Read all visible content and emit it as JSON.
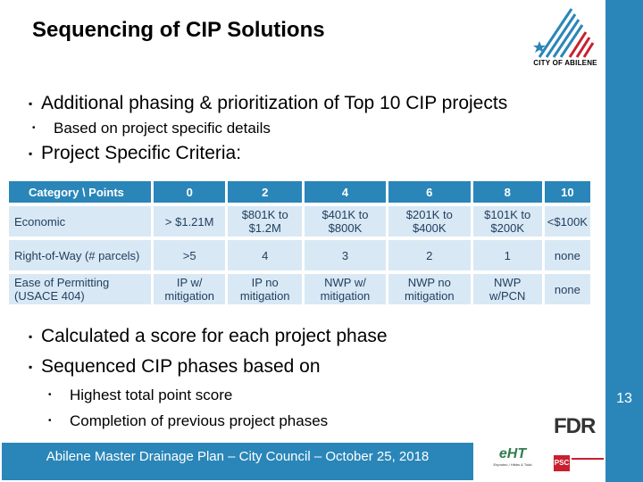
{
  "slide": {
    "title": "Sequencing of CIP Solutions",
    "page_number": "13",
    "logo_text": "CITY OF ABILENE"
  },
  "bullets_top": [
    {
      "text": "Additional phasing & prioritization of Top 10 CIP projects"
    },
    {
      "text": "Based on project specific details"
    },
    {
      "text": "Project Specific Criteria:"
    }
  ],
  "table": {
    "headers": [
      "Category \\ Points",
      "0",
      "2",
      "4",
      "6",
      "8",
      "10"
    ],
    "rows": [
      [
        "Economic",
        "> $1.21M",
        "$801K to $1.2M",
        "$401K to $800K",
        "$201K to $400K",
        "$101K to $200K",
        "<$100K"
      ],
      [
        "Right-of-Way (# parcels)",
        ">5",
        "4",
        "3",
        "2",
        "1",
        "none"
      ],
      [
        "Ease of Permitting (USACE 404)",
        "IP w/ mitigation",
        "IP no mitigation",
        "NWP w/ mitigation",
        "NWP no mitigation",
        "NWP w/PCN",
        "none"
      ]
    ]
  },
  "bullets_bottom": [
    {
      "text": "Calculated a score for each project phase"
    },
    {
      "text": "Sequenced CIP phases based on"
    },
    {
      "text": "Highest total point score"
    },
    {
      "text": "Completion of previous project phases"
    }
  ],
  "footer": {
    "text": "Abilene Master Drainage Plan – City Council – October 25, 2018",
    "logos": {
      "hdr": "FDR",
      "eht": "eHT",
      "eht_sub": "Enprotec / Hibbs & Todd",
      "psc": "PSC"
    }
  },
  "colors": {
    "accent": "#2a86b8",
    "table_cell": "#d9e8f5",
    "logo_red": "#c8202f"
  }
}
